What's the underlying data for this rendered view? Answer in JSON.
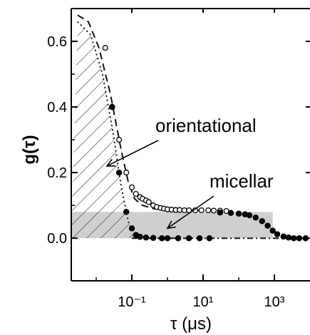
{
  "chart_data": {
    "type": "scatter",
    "x_scale": "log",
    "xlim": [
      0.002,
      10000
    ],
    "ylim": [
      -0.13,
      0.7
    ],
    "grid": false,
    "xlabel": "τ (μs)",
    "ylabel": "g(τ)",
    "x_ticks": [
      {
        "value": 0.1,
        "label": "10⁻¹"
      },
      {
        "value": 10,
        "label": "10¹"
      },
      {
        "value": 1000,
        "label": "10³"
      }
    ],
    "y_ticks": [
      {
        "value": 0.0,
        "label": "0.0"
      },
      {
        "value": 0.2,
        "label": "0.2"
      },
      {
        "value": 0.4,
        "label": "0.4"
      },
      {
        "value": 0.6,
        "label": "0.6"
      }
    ],
    "annotations": [
      {
        "text": "orientational",
        "points_to": {
          "x": 0.02,
          "y": 0.22
        }
      },
      {
        "text": "micellar",
        "points_to": {
          "x": 1.0,
          "y": 0.03
        }
      }
    ],
    "shaded_micellar_level": 0.08,
    "series": [
      {
        "marker": "open-circle",
        "x": [
          0.018,
          0.028,
          0.044,
          0.07,
          0.1,
          0.13,
          0.17,
          0.2,
          0.25,
          0.3,
          0.4,
          0.5,
          0.65,
          0.8,
          1.0,
          1.3,
          1.7,
          2.2,
          3.0,
          4.0,
          6.0,
          9.0,
          14.0,
          20.0,
          30.0,
          45.0
        ],
        "y": [
          0.58,
          0.4,
          0.3,
          0.2,
          0.155,
          0.135,
          0.125,
          0.12,
          0.115,
          0.11,
          0.1,
          0.095,
          0.092,
          0.09,
          0.088,
          0.087,
          0.086,
          0.086,
          0.085,
          0.085,
          0.085,
          0.085,
          0.085,
          0.084,
          0.084,
          0.083
        ]
      },
      {
        "marker": "filled-circle",
        "x": [
          0.028,
          0.044,
          0.07,
          0.1,
          0.13,
          0.17,
          0.25,
          0.4,
          0.7,
          1.0,
          2.0,
          4.0,
          8.0,
          15.0,
          30.0,
          60.0,
          100.0,
          150.0,
          200.0,
          300.0,
          450.0,
          650.0,
          900.0,
          1200.0,
          1800.0,
          2500.0,
          3500.0,
          5000.0,
          7500.0
        ],
        "y": [
          0.4,
          0.2,
          0.08,
          0.03,
          0.01,
          0.004,
          0.002,
          0.001,
          0.0,
          0.0,
          0.0,
          0.0,
          0.0,
          0.0,
          0.078,
          0.077,
          0.075,
          0.073,
          0.07,
          0.063,
          0.052,
          0.038,
          0.023,
          0.012,
          0.005,
          0.002,
          0.0,
          0.0,
          0.0
        ]
      }
    ],
    "fit_lines": [
      {
        "style": "dashed",
        "x": [
          0.003,
          0.006,
          0.012,
          0.025,
          0.05,
          0.08,
          0.12,
          0.2,
          0.4,
          1.0,
          3.0,
          10.0
        ],
        "y": [
          0.68,
          0.66,
          0.58,
          0.44,
          0.27,
          0.17,
          0.12,
          0.1,
          0.09,
          0.086,
          0.085,
          0.084
        ]
      },
      {
        "style": "dotted",
        "x": [
          0.003,
          0.007,
          0.015,
          0.03,
          0.05,
          0.08,
          0.12,
          0.2,
          0.5,
          2.0
        ],
        "y": [
          0.66,
          0.62,
          0.5,
          0.32,
          0.16,
          0.05,
          0.01,
          0.0,
          0.0,
          0.0
        ]
      },
      {
        "style": "dash-dot",
        "x": [
          0.1,
          1.0,
          10.0,
          100.0,
          1000.0,
          10000.0
        ],
        "y": [
          0.0,
          0.0,
          0.0,
          0.0,
          0.0,
          0.0
        ]
      }
    ]
  }
}
